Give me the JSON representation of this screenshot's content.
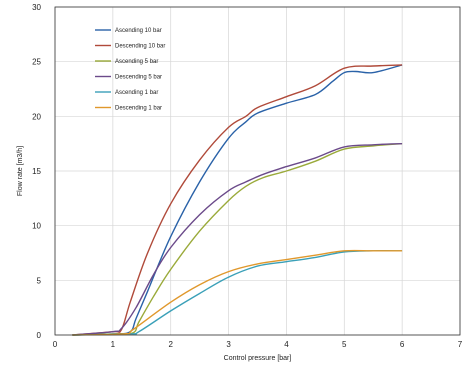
{
  "chart_data": {
    "type": "line",
    "xlabel": "Control pressure [bar]",
    "ylabel": "Flow rate [m3/h]",
    "xlim": [
      0,
      7
    ],
    "ylim": [
      0,
      30
    ],
    "xticks": [
      "0",
      "1",
      "2",
      "3",
      "4",
      "5",
      "6",
      "7"
    ],
    "yticks": [
      "0",
      "5",
      "10",
      "15",
      "20",
      "25",
      "30"
    ],
    "grid": true,
    "legend_position": "top-left",
    "series": [
      {
        "name": "Ascending 10 bar",
        "color": "#2a62a8",
        "points": [
          [
            0.3,
            0
          ],
          [
            1.0,
            0.1
          ],
          [
            1.3,
            0.3
          ],
          [
            1.4,
            1.5
          ],
          [
            1.6,
            4
          ],
          [
            2.0,
            9
          ],
          [
            2.5,
            14
          ],
          [
            3.0,
            18
          ],
          [
            3.3,
            19.5
          ],
          [
            3.5,
            20.3
          ],
          [
            4.0,
            21.2
          ],
          [
            4.5,
            22
          ],
          [
            4.8,
            23.2
          ],
          [
            5.0,
            24
          ],
          [
            5.2,
            24.1
          ],
          [
            5.5,
            24
          ],
          [
            6.0,
            24.7
          ]
        ]
      },
      {
        "name": "Descending 10 bar",
        "color": "#b04a3a",
        "points": [
          [
            0.3,
            0
          ],
          [
            1.0,
            0.3
          ],
          [
            1.15,
            0.5
          ],
          [
            1.3,
            3
          ],
          [
            1.6,
            7.5
          ],
          [
            2.0,
            12
          ],
          [
            2.5,
            16
          ],
          [
            3.0,
            19
          ],
          [
            3.3,
            20
          ],
          [
            3.5,
            20.8
          ],
          [
            4.0,
            21.8
          ],
          [
            4.5,
            22.8
          ],
          [
            5.0,
            24.4
          ],
          [
            5.5,
            24.6
          ],
          [
            6.0,
            24.7
          ]
        ]
      },
      {
        "name": "Ascending 5 bar",
        "color": "#9aaa3a",
        "points": [
          [
            0.3,
            0
          ],
          [
            1.0,
            0.1
          ],
          [
            1.35,
            0.2
          ],
          [
            1.45,
            1.2
          ],
          [
            1.7,
            3.5
          ],
          [
            2.0,
            6
          ],
          [
            2.5,
            9.5
          ],
          [
            3.0,
            12.3
          ],
          [
            3.3,
            13.6
          ],
          [
            3.6,
            14.4
          ],
          [
            4.0,
            15
          ],
          [
            4.5,
            15.9
          ],
          [
            5.0,
            17
          ],
          [
            5.5,
            17.3
          ],
          [
            6.0,
            17.5
          ]
        ]
      },
      {
        "name": "Descending 5 bar",
        "color": "#6b4a8a",
        "points": [
          [
            0.3,
            0
          ],
          [
            1.0,
            0.3
          ],
          [
            1.15,
            0.6
          ],
          [
            1.4,
            2.5
          ],
          [
            1.7,
            5.5
          ],
          [
            2.0,
            8
          ],
          [
            2.5,
            11
          ],
          [
            3.0,
            13.2
          ],
          [
            3.3,
            14
          ],
          [
            3.6,
            14.7
          ],
          [
            4.0,
            15.4
          ],
          [
            4.5,
            16.2
          ],
          [
            5.0,
            17.2
          ],
          [
            5.5,
            17.4
          ],
          [
            6.0,
            17.5
          ]
        ]
      },
      {
        "name": "Ascending 1 bar",
        "color": "#3aa0b8",
        "points": [
          [
            0.3,
            0
          ],
          [
            1.3,
            0.1
          ],
          [
            1.45,
            0.3
          ],
          [
            2.0,
            2.2
          ],
          [
            2.5,
            3.8
          ],
          [
            3.0,
            5.3
          ],
          [
            3.5,
            6.3
          ],
          [
            4.0,
            6.7
          ],
          [
            4.5,
            7.1
          ],
          [
            5.0,
            7.6
          ],
          [
            5.5,
            7.7
          ],
          [
            6.0,
            7.7
          ]
        ]
      },
      {
        "name": "Descending 1 bar",
        "color": "#e0982c",
        "points": [
          [
            0.3,
            0
          ],
          [
            1.2,
            0.1
          ],
          [
            1.35,
            0.5
          ],
          [
            2.0,
            3.0
          ],
          [
            2.5,
            4.6
          ],
          [
            3.0,
            5.8
          ],
          [
            3.5,
            6.5
          ],
          [
            4.0,
            6.9
          ],
          [
            4.5,
            7.3
          ],
          [
            5.0,
            7.7
          ],
          [
            5.5,
            7.7
          ],
          [
            6.0,
            7.7
          ]
        ]
      }
    ]
  }
}
